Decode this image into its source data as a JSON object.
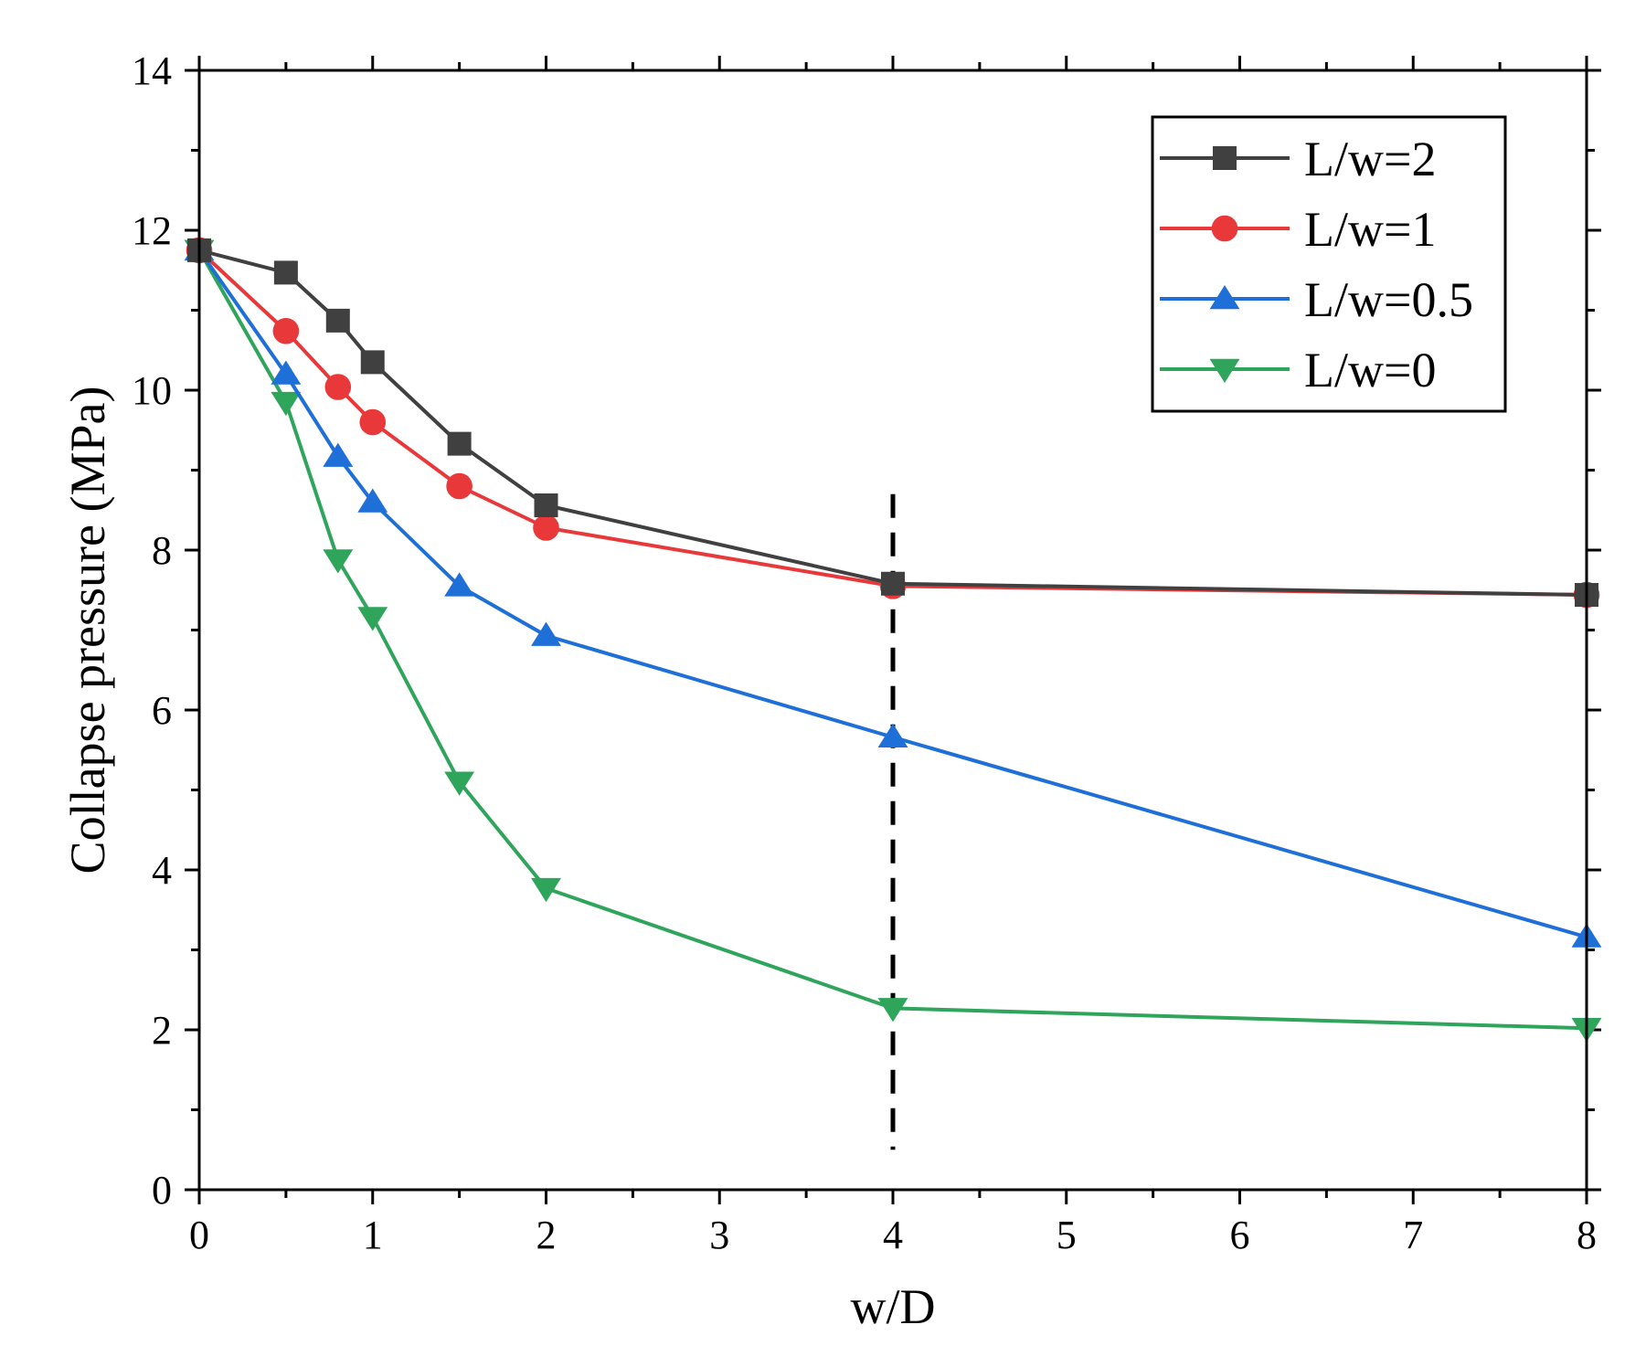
{
  "chart_data": {
    "type": "line",
    "title": "",
    "xlabel": "w/D",
    "ylabel": "Collapse pressure (MPa)",
    "xlim": [
      0,
      8
    ],
    "ylim": [
      0,
      14
    ],
    "x_tick_labels": [
      "0",
      "1",
      "2",
      "3",
      "4",
      "5",
      "6",
      "7",
      "8"
    ],
    "y_tick_labels": [
      "0",
      "2",
      "4",
      "6",
      "8",
      "10",
      "12",
      "14"
    ],
    "x_tick_positions": [
      0,
      1,
      2,
      3,
      4,
      5,
      6,
      7,
      8
    ],
    "x": [
      0,
      0.5,
      0.8,
      1,
      1.5,
      2,
      4,
      8
    ],
    "series": [
      {
        "name": "L/w=2",
        "color": "#404040",
        "marker": "square",
        "values": [
          11.75,
          11.47,
          10.87,
          10.35,
          9.33,
          8.56,
          7.58,
          7.44
        ]
      },
      {
        "name": "L/w=1",
        "color": "#e8383a",
        "marker": "circle",
        "values": [
          11.75,
          10.74,
          10.04,
          9.6,
          8.8,
          8.28,
          7.55,
          7.44
        ]
      },
      {
        "name": "L/w=0.5",
        "color": "#1f6fd8",
        "marker": "triangle-up",
        "values": [
          11.75,
          10.2,
          9.17,
          8.6,
          7.55,
          6.93,
          5.66,
          3.16
        ]
      },
      {
        "name": "L/w=0",
        "color": "#2ea55a",
        "marker": "triangle-down",
        "values": [
          11.75,
          9.85,
          7.88,
          7.16,
          5.1,
          3.77,
          2.27,
          2.02
        ]
      }
    ],
    "reference_line": {
      "x": 4,
      "y_range": [
        0.5,
        8.7
      ],
      "style": "dashed"
    },
    "legend_position": "top-right",
    "grid": false
  }
}
